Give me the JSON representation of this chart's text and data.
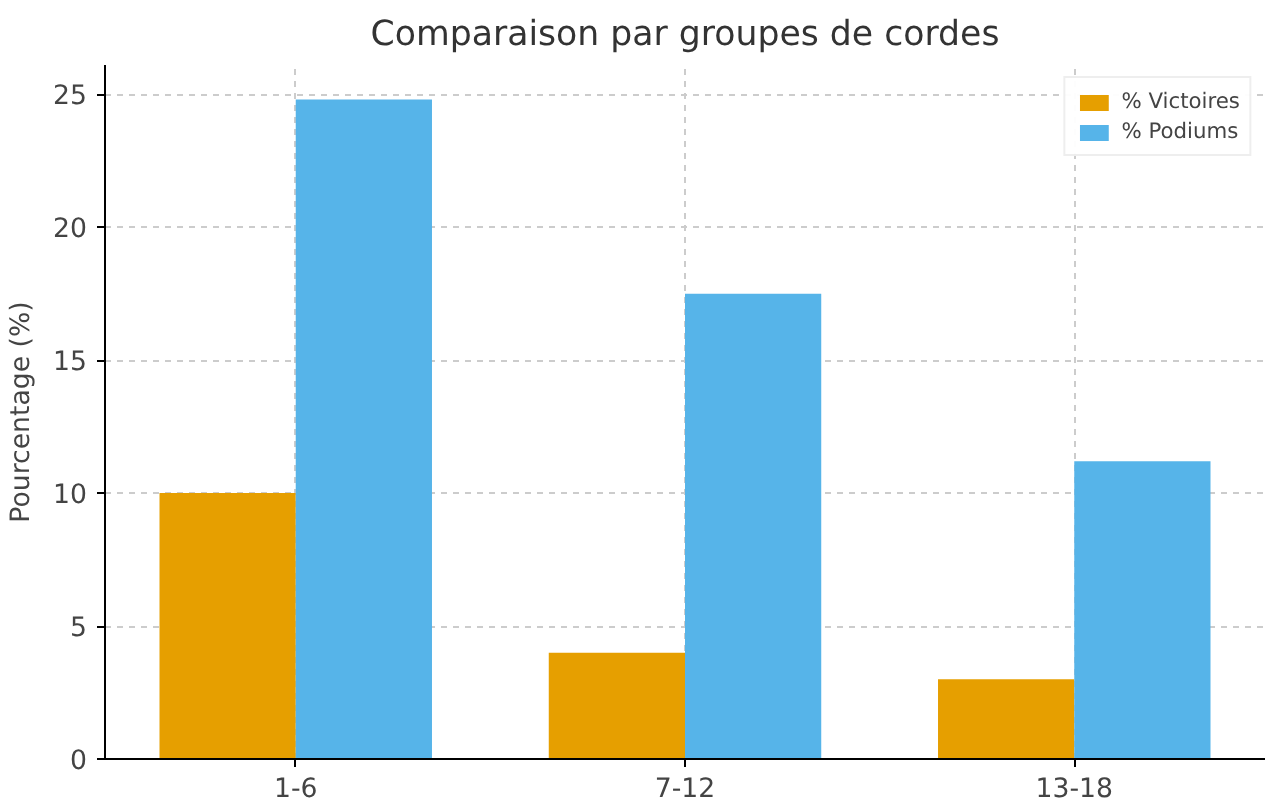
{
  "chart_data": {
    "type": "bar",
    "title": "Comparaison par groupes de cordes",
    "ylabel": "Pourcentage (%)",
    "categories": [
      "1-6",
      "7-12",
      "13-18"
    ],
    "series": [
      {
        "name": "% Victoires",
        "color": "#e69f00",
        "values": [
          10,
          4,
          3
        ]
      },
      {
        "name": "% Podiums",
        "color": "#56b4e9",
        "values": [
          24.8,
          17.5,
          11.2
        ]
      }
    ],
    "ylim": [
      0,
      26.1
    ],
    "yticks": [
      0,
      5,
      10,
      15,
      20,
      25
    ],
    "grid": true,
    "legend": "top right"
  }
}
